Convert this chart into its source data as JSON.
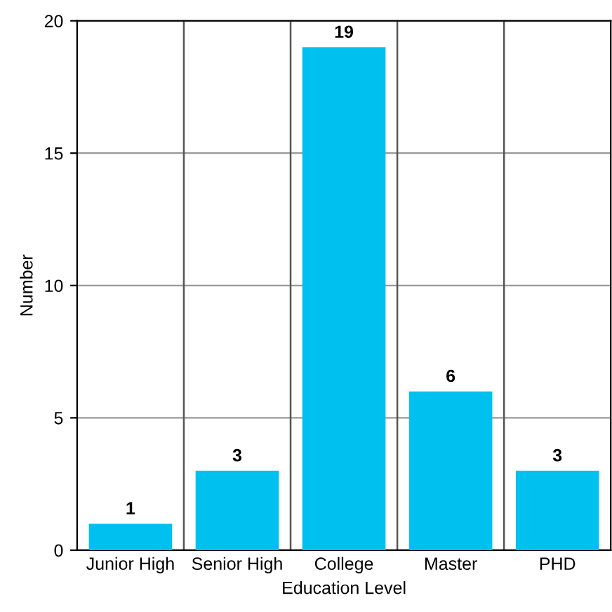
{
  "chart_data": {
    "type": "bar",
    "xlabel": "Education Level",
    "ylabel": "Number",
    "categories": [
      "Junior High",
      "Senior High",
      "College",
      "Master",
      "PHD"
    ],
    "values": [
      1,
      3,
      19,
      6,
      3
    ],
    "color": "#00c0f0",
    "ylim": [
      0,
      20
    ],
    "yticks": [
      0,
      5,
      10,
      15,
      20
    ],
    "grid": true,
    "data_labels": true,
    "legend": false
  }
}
